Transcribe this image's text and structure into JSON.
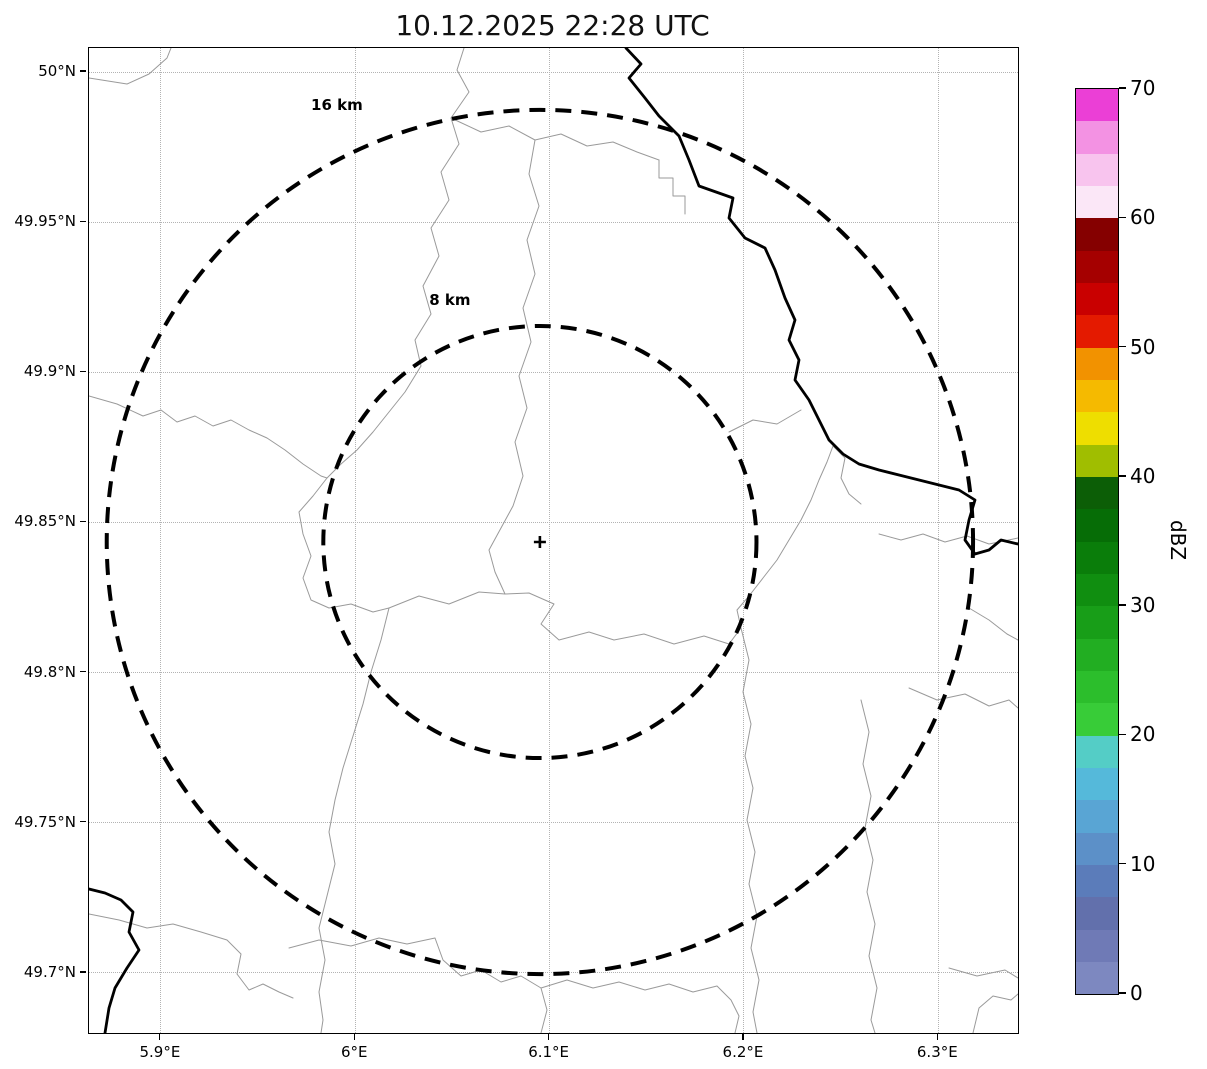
{
  "title": "10.12.2025 22:28 UTC",
  "map": {
    "x_axis": {
      "min": 5.863,
      "max": 6.341,
      "ticks": [
        {
          "value": 5.9,
          "label": "5.9°E"
        },
        {
          "value": 6.0,
          "label": "6°E"
        },
        {
          "value": 6.1,
          "label": "6.1°E"
        },
        {
          "value": 6.2,
          "label": "6.2°E"
        },
        {
          "value": 6.3,
          "label": "6.3°E"
        }
      ]
    },
    "y_axis": {
      "min": 49.68,
      "max": 50.008,
      "ticks": [
        {
          "value": 50.0,
          "label": "50°N"
        },
        {
          "value": 49.95,
          "label": "49.95°N"
        },
        {
          "value": 49.9,
          "label": "49.9°N"
        },
        {
          "value": 49.85,
          "label": "49.85°N"
        },
        {
          "value": 49.8,
          "label": "49.8°N"
        },
        {
          "value": 49.75,
          "label": "49.75°N"
        },
        {
          "value": 49.7,
          "label": "49.7°N"
        }
      ]
    },
    "radar_site": {
      "lon": 6.095,
      "lat": 49.8435,
      "marker": "+"
    },
    "range_rings": [
      {
        "label": "16 km",
        "radius_km": 16
      },
      {
        "label": "8 km",
        "radius_km": 8
      }
    ]
  },
  "colorbar": {
    "label": "dBZ",
    "min": 0,
    "max": 70,
    "ticks": [
      0,
      10,
      20,
      30,
      40,
      50,
      60,
      70
    ],
    "segment_step": 2.5,
    "colors_bottom_to_top": [
      "#7d88c0",
      "#6f7ab6",
      "#6270ac",
      "#5b7cba",
      "#5c90c8",
      "#59a5d4",
      "#55b9da",
      "#54cdc6",
      "#38cc38",
      "#2cbe2c",
      "#22ae22",
      "#189e18",
      "#108e10",
      "#0a7d0a",
      "#066d06",
      "#0c5e06",
      "#a0be00",
      "#eede00",
      "#f5ba00",
      "#f29200",
      "#e41a00",
      "#c90000",
      "#a50000",
      "#850000",
      "#fbe7f7",
      "#f8c4ee",
      "#f392e3",
      "#eb3fd6"
    ]
  }
}
